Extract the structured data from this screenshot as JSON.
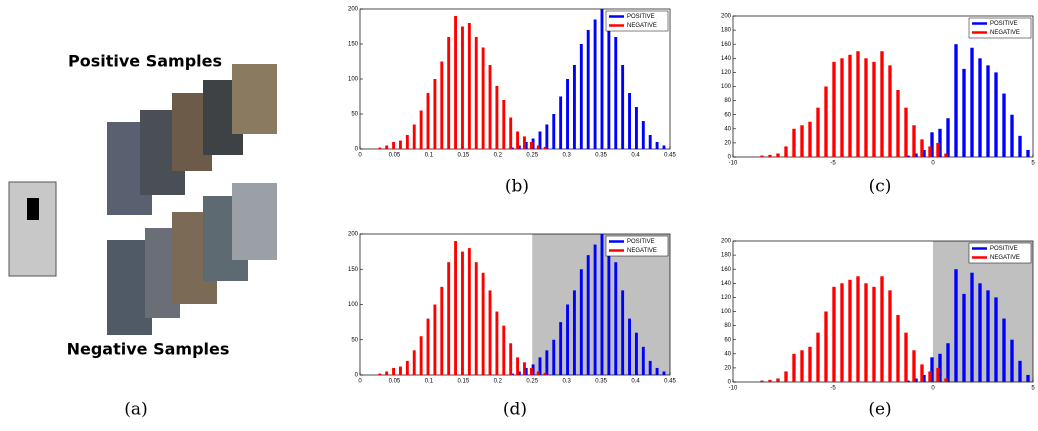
{
  "panel_a": {
    "positive_label": "Positive Samples",
    "negative_label": "Negative Samples",
    "label": "(a)"
  },
  "chart_data": [
    {
      "type": "bar",
      "label": "(b)",
      "legend": "upper right",
      "x": [
        0.03,
        0.04,
        0.05,
        0.06,
        0.07,
        0.08,
        0.09,
        0.1,
        0.11,
        0.12,
        0.13,
        0.14,
        0.15,
        0.16,
        0.17,
        0.18,
        0.19,
        0.2,
        0.21,
        0.22,
        0.23,
        0.24,
        0.25,
        0.26,
        0.27,
        0.28,
        0.29,
        0.3,
        0.31,
        0.32,
        0.33,
        0.34,
        0.35,
        0.36,
        0.37,
        0.38,
        0.39,
        0.4,
        0.41,
        0.42,
        0.43,
        0.44
      ],
      "series": [
        {
          "name": "POSITIVE",
          "color": "#0000ff",
          "values": [
            null,
            null,
            null,
            null,
            null,
            null,
            null,
            null,
            null,
            null,
            null,
            null,
            null,
            null,
            null,
            null,
            null,
            null,
            null,
            2,
            5,
            10,
            15,
            25,
            35,
            50,
            75,
            100,
            120,
            150,
            170,
            185,
            200,
            175,
            160,
            120,
            80,
            60,
            40,
            20,
            10,
            5
          ]
        },
        {
          "name": "NEGATIVE",
          "color": "#ff0000",
          "values": [
            2,
            5,
            10,
            12,
            20,
            35,
            55,
            80,
            100,
            125,
            160,
            190,
            175,
            180,
            160,
            145,
            120,
            90,
            70,
            45,
            25,
            18,
            10,
            5,
            3,
            null,
            null,
            null,
            null,
            null,
            null,
            null,
            null,
            null,
            null,
            null,
            null,
            null,
            null,
            null,
            null,
            null
          ]
        }
      ],
      "xlim": [
        0,
        0.45
      ],
      "xticks": [
        0,
        0.05,
        0.1,
        0.15,
        0.2,
        0.25,
        0.3,
        0.35,
        0.4,
        0.45
      ],
      "ylim": [
        0,
        200
      ],
      "yticks": [
        0,
        50,
        100,
        150,
        200
      ]
    },
    {
      "type": "bar",
      "label": "(c)",
      "legend": "upper right",
      "x": [
        -8.5,
        -8.1,
        -7.7,
        -7.3,
        -6.9,
        -6.5,
        -6.1,
        -5.7,
        -5.3,
        -4.9,
        -4.5,
        -4.1,
        -3.7,
        -3.3,
        -2.9,
        -2.5,
        -2.1,
        -1.7,
        -1.3,
        -0.9,
        -0.5,
        -0.1,
        0.3,
        0.7,
        1.1,
        1.5,
        1.9,
        2.3,
        2.7,
        3.1,
        3.5,
        3.9,
        4.3,
        4.7
      ],
      "series": [
        {
          "name": "POSITIVE",
          "color": "#0000ff",
          "values": [
            null,
            null,
            null,
            null,
            null,
            null,
            null,
            null,
            null,
            null,
            null,
            null,
            null,
            null,
            null,
            null,
            null,
            null,
            2,
            5,
            10,
            35,
            40,
            55,
            160,
            125,
            155,
            140,
            130,
            120,
            90,
            60,
            30,
            10
          ]
        },
        {
          "name": "NEGATIVE",
          "color": "#ff0000",
          "values": [
            2,
            3,
            5,
            15,
            40,
            45,
            50,
            70,
            100,
            135,
            140,
            145,
            150,
            140,
            135,
            150,
            130,
            95,
            70,
            45,
            25,
            15,
            20,
            5,
            null,
            null,
            null,
            null,
            null,
            null,
            null,
            null,
            null,
            null
          ]
        }
      ],
      "xlim": [
        -10,
        5
      ],
      "xticks": [
        -10,
        -5,
        0,
        5
      ],
      "ylim": [
        0,
        200
      ],
      "yticks": [
        0,
        20,
        40,
        60,
        80,
        100,
        120,
        140,
        160,
        180,
        200
      ]
    },
    {
      "type": "bar",
      "label": "(d)",
      "legend": "upper right",
      "shaded_region": [
        0.25,
        0.45
      ],
      "x": [
        0.03,
        0.04,
        0.05,
        0.06,
        0.07,
        0.08,
        0.09,
        0.1,
        0.11,
        0.12,
        0.13,
        0.14,
        0.15,
        0.16,
        0.17,
        0.18,
        0.19,
        0.2,
        0.21,
        0.22,
        0.23,
        0.24,
        0.25,
        0.26,
        0.27,
        0.28,
        0.29,
        0.3,
        0.31,
        0.32,
        0.33,
        0.34,
        0.35,
        0.36,
        0.37,
        0.38,
        0.39,
        0.4,
        0.41,
        0.42,
        0.43,
        0.44
      ],
      "series": [
        {
          "name": "POSITIVE",
          "color": "#0000ff",
          "values": [
            null,
            null,
            null,
            null,
            null,
            null,
            null,
            null,
            null,
            null,
            null,
            null,
            null,
            null,
            null,
            null,
            null,
            null,
            null,
            2,
            5,
            10,
            15,
            25,
            35,
            50,
            75,
            100,
            120,
            150,
            170,
            185,
            200,
            175,
            160,
            120,
            80,
            60,
            40,
            20,
            10,
            5
          ]
        },
        {
          "name": "NEGATIVE",
          "color": "#ff0000",
          "values": [
            2,
            5,
            10,
            12,
            20,
            35,
            55,
            80,
            100,
            125,
            160,
            190,
            175,
            180,
            160,
            145,
            120,
            90,
            70,
            45,
            25,
            18,
            10,
            5,
            3,
            null,
            null,
            null,
            null,
            null,
            null,
            null,
            null,
            null,
            null,
            null,
            null,
            null,
            null,
            null,
            null,
            null
          ]
        }
      ],
      "xlim": [
        0,
        0.45
      ],
      "xticks": [
        0,
        0.05,
        0.1,
        0.15,
        0.2,
        0.25,
        0.3,
        0.35,
        0.4,
        0.45
      ],
      "ylim": [
        0,
        200
      ],
      "yticks": [
        0,
        50,
        100,
        150,
        200
      ]
    },
    {
      "type": "bar",
      "label": "(e)",
      "legend": "upper right",
      "shaded_region": [
        0,
        5
      ],
      "x": [
        -8.5,
        -8.1,
        -7.7,
        -7.3,
        -6.9,
        -6.5,
        -6.1,
        -5.7,
        -5.3,
        -4.9,
        -4.5,
        -4.1,
        -3.7,
        -3.3,
        -2.9,
        -2.5,
        -2.1,
        -1.7,
        -1.3,
        -0.9,
        -0.5,
        -0.1,
        0.3,
        0.7,
        1.1,
        1.5,
        1.9,
        2.3,
        2.7,
        3.1,
        3.5,
        3.9,
        4.3,
        4.7
      ],
      "series": [
        {
          "name": "POSITIVE",
          "color": "#0000ff",
          "values": [
            null,
            null,
            null,
            null,
            null,
            null,
            null,
            null,
            null,
            null,
            null,
            null,
            null,
            null,
            null,
            null,
            null,
            null,
            2,
            5,
            10,
            35,
            40,
            55,
            160,
            125,
            155,
            140,
            130,
            120,
            90,
            60,
            30,
            10
          ]
        },
        {
          "name": "NEGATIVE",
          "color": "#ff0000",
          "values": [
            2,
            3,
            5,
            15,
            40,
            45,
            50,
            70,
            100,
            135,
            140,
            145,
            150,
            140,
            135,
            150,
            130,
            95,
            70,
            45,
            25,
            15,
            20,
            5,
            null,
            null,
            null,
            null,
            null,
            null,
            null,
            null,
            null,
            null
          ]
        }
      ],
      "xlim": [
        -10,
        5
      ],
      "xticks": [
        -10,
        -5,
        0,
        5
      ],
      "ylim": [
        0,
        200
      ],
      "yticks": [
        0,
        20,
        40,
        60,
        80,
        100,
        120,
        140,
        160,
        180,
        200
      ]
    }
  ]
}
